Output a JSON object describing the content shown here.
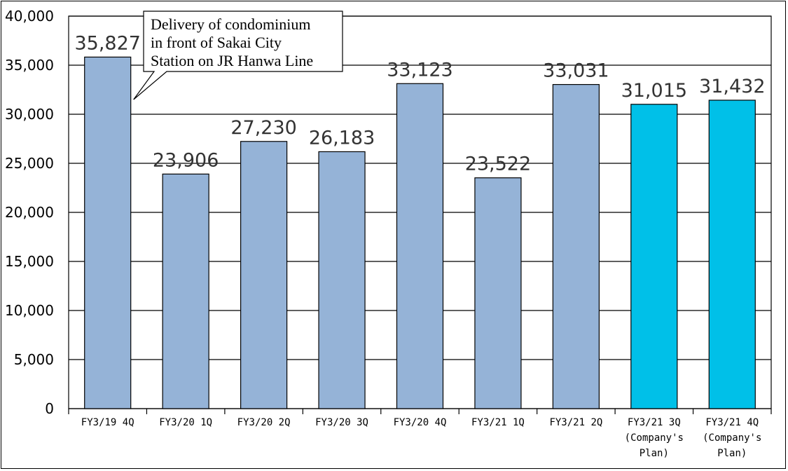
{
  "chart_data": {
    "type": "bar",
    "categories": [
      [
        "FY3/19 4Q"
      ],
      [
        "FY3/20 1Q"
      ],
      [
        "FY3/20 2Q"
      ],
      [
        "FY3/20 3Q"
      ],
      [
        "FY3/20 4Q"
      ],
      [
        "FY3/21 1Q"
      ],
      [
        "FY3/21 2Q"
      ],
      [
        "FY3/21 3Q",
        "(Company's",
        "Plan)"
      ],
      [
        "FY3/21 4Q",
        "(Company's",
        "Plan)"
      ]
    ],
    "values": [
      35827,
      23906,
      27230,
      26183,
      33123,
      23522,
      33031,
      31015,
      31432
    ],
    "value_labels": [
      "35,827",
      "23,906",
      "27,230",
      "26,183",
      "33,123",
      "23,522",
      "33,031",
      "31,015",
      "31,432"
    ],
    "ylim": [
      0,
      40000
    ],
    "yticks": [
      0,
      5000,
      10000,
      15000,
      20000,
      25000,
      30000,
      35000,
      40000
    ],
    "ytick_labels": [
      "0",
      "5,000",
      "10,000",
      "15,000",
      "20,000",
      "25,000",
      "30,000",
      "35,000",
      "40,000"
    ],
    "grid": true,
    "colors": {
      "actual": "#95b3d7",
      "plan": "#00c0e8",
      "border": "#000000"
    },
    "annotation": {
      "target_index": 0,
      "lines": [
        "Delivery  of condominium",
        "in front of Sakai City",
        "Station on JR Hanwa Line"
      ]
    }
  }
}
